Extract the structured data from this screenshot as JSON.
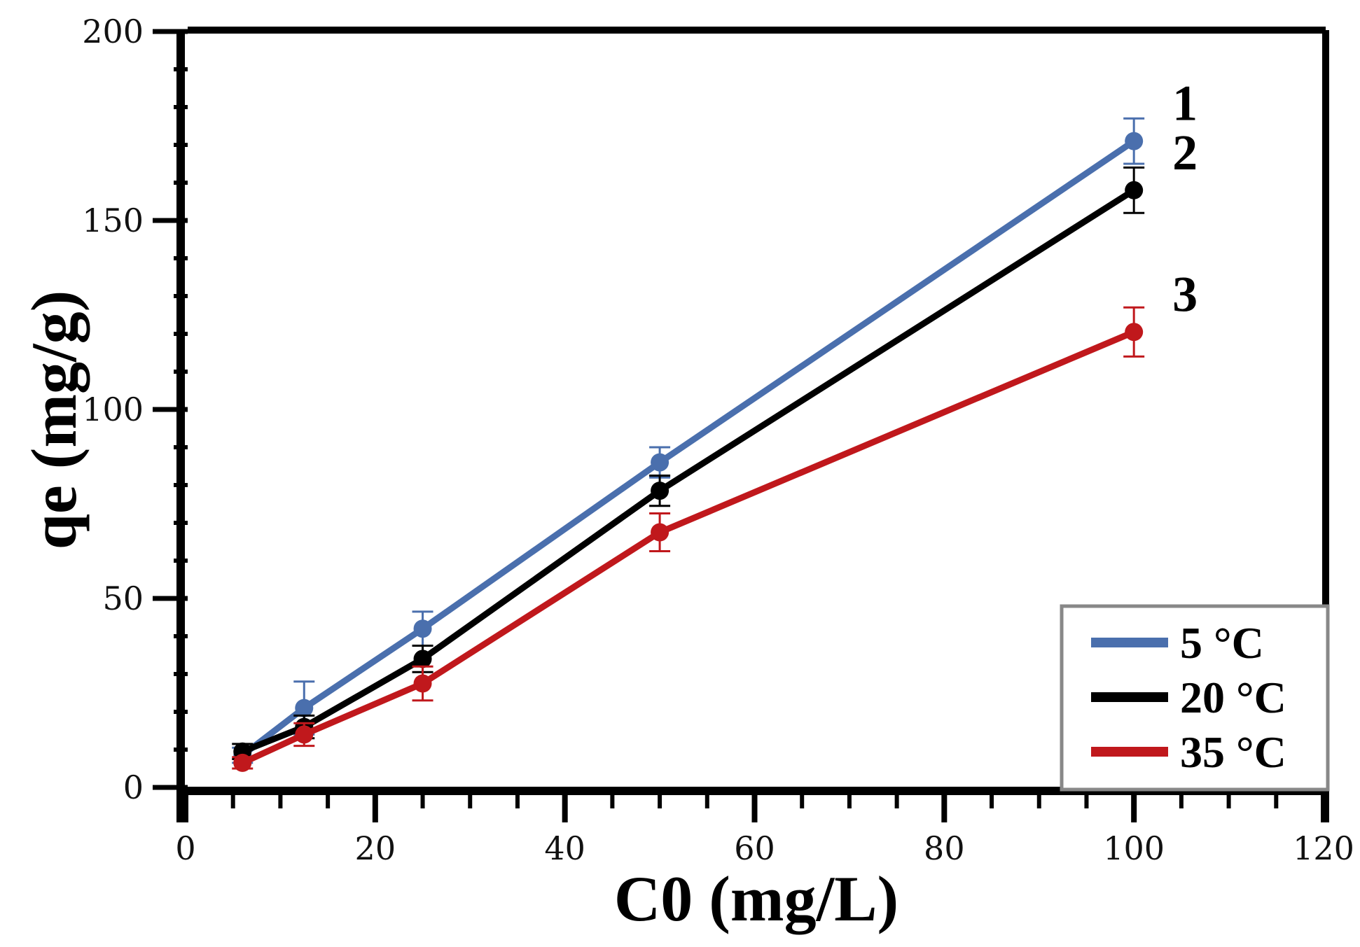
{
  "chart_data": {
    "type": "line",
    "title": "",
    "xlabel": "C0 (mg/L)",
    "ylabel": "qe (mg/g)",
    "xlim": [
      0,
      120
    ],
    "ylim": [
      0,
      200
    ],
    "xticks": [
      "0",
      "20",
      "40",
      "60",
      "80",
      "100",
      "120"
    ],
    "yticks": [
      "0",
      "50",
      "100",
      "150",
      "200"
    ],
    "grid": false,
    "legend_position": "bottom-right",
    "x": [
      6,
      12.5,
      25,
      50,
      100
    ],
    "series": [
      {
        "name": "5 °C",
        "label_number": "1",
        "color": "#4a6fad",
        "values": [
          8.5,
          21,
          42,
          86,
          171
        ],
        "errors": [
          2,
          7,
          4.5,
          4,
          6
        ]
      },
      {
        "name": "20 °C",
        "label_number": "2",
        "color": "#000000",
        "values": [
          9.5,
          16,
          34,
          78.5,
          158
        ],
        "errors": [
          2,
          3,
          3.5,
          4,
          6
        ]
      },
      {
        "name": "35 °C",
        "label_number": "3",
        "color": "#c0181c",
        "values": [
          6.5,
          14,
          27.5,
          67.5,
          120.5
        ],
        "errors": [
          1.5,
          3,
          4.5,
          5,
          6.5
        ]
      }
    ]
  }
}
